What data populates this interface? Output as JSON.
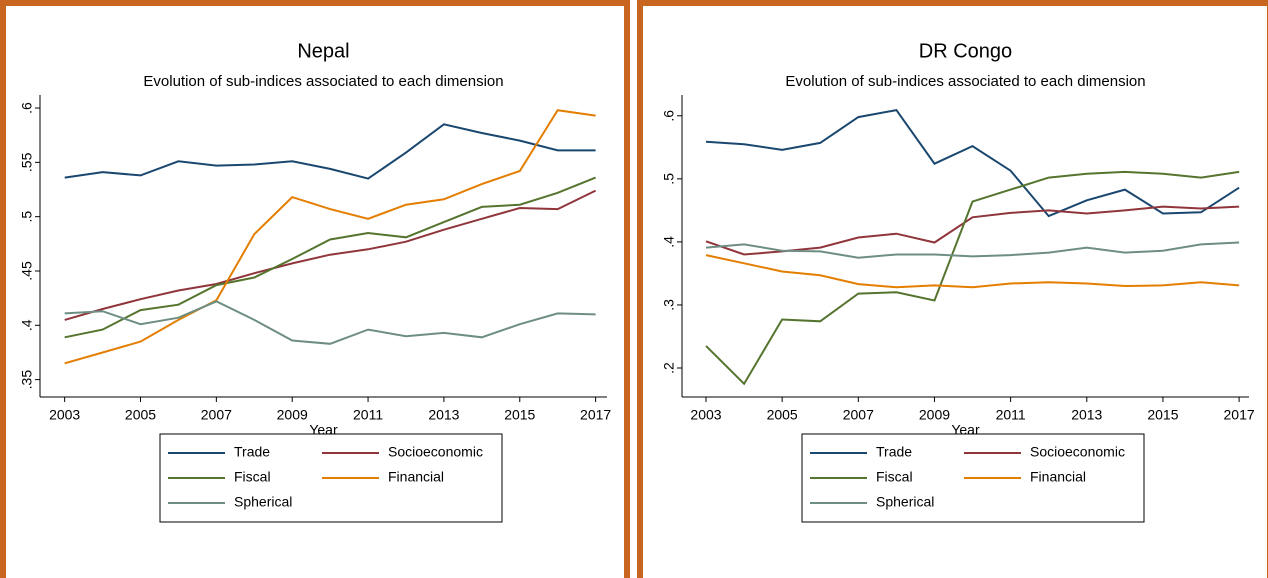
{
  "chart_data": [
    {
      "type": "line",
      "title": "Nepal",
      "subtitle": "Evolution of sub-indices associated to each dimension",
      "x_label": "Year",
      "x": [
        2003,
        2004,
        2005,
        2006,
        2007,
        2008,
        2009,
        2010,
        2011,
        2012,
        2013,
        2014,
        2015,
        2016,
        2017
      ],
      "xlim": [
        2002.35,
        2017.3
      ],
      "xticks": [
        2003,
        2005,
        2007,
        2009,
        2011,
        2013,
        2015,
        2017
      ],
      "ylim": [
        0.334,
        0.612
      ],
      "yticks": [
        {
          "value": 0.35,
          "label": ".35"
        },
        {
          "value": 0.4,
          "label": ".4"
        },
        {
          "value": 0.45,
          "label": ".45"
        },
        {
          "value": 0.5,
          "label": ".5"
        },
        {
          "value": 0.55,
          "label": ".55"
        },
        {
          "value": 0.6,
          "label": ".6"
        }
      ],
      "series": [
        {
          "name": "Trade",
          "color": "#1a476f",
          "values": [
            0.536,
            0.541,
            0.538,
            0.551,
            0.547,
            0.548,
            0.551,
            0.544,
            0.535,
            0.559,
            0.585,
            0.577,
            0.57,
            0.561,
            0.561
          ]
        },
        {
          "name": "Socioeconomic",
          "color": "#90353b",
          "values": [
            0.405,
            0.415,
            0.424,
            0.432,
            0.438,
            0.448,
            0.457,
            0.465,
            0.47,
            0.477,
            0.488,
            0.498,
            0.508,
            0.507,
            0.524
          ]
        },
        {
          "name": "Fiscal",
          "color": "#55752f",
          "values": [
            0.389,
            0.396,
            0.414,
            0.419,
            0.437,
            0.444,
            0.461,
            0.479,
            0.485,
            0.481,
            0.495,
            0.509,
            0.511,
            0.522,
            0.536
          ]
        },
        {
          "name": "Financial",
          "color": "#e37e00",
          "values": [
            0.365,
            0.375,
            0.385,
            0.405,
            0.423,
            0.484,
            0.518,
            0.507,
            0.498,
            0.511,
            0.516,
            0.53,
            0.542,
            0.598,
            0.593
          ]
        },
        {
          "name": "Spherical",
          "color": "#6e8e84",
          "values": [
            0.411,
            0.413,
            0.401,
            0.407,
            0.422,
            0.405,
            0.386,
            0.383,
            0.396,
            0.39,
            0.393,
            0.389,
            0.401,
            0.411,
            0.41
          ]
        }
      ]
    },
    {
      "type": "line",
      "title": "DR Congo",
      "subtitle": "Evolution of sub-indices associated to each dimension",
      "x_label": "Year",
      "x": [
        2003,
        2004,
        2005,
        2006,
        2007,
        2008,
        2009,
        2010,
        2011,
        2012,
        2013,
        2014,
        2015,
        2016,
        2017
      ],
      "xlim": [
        2002.37,
        2017.26
      ],
      "xticks": [
        2003,
        2005,
        2007,
        2009,
        2011,
        2013,
        2015,
        2017
      ],
      "ylim": [
        0.154,
        0.633
      ],
      "yticks": [
        {
          "value": 0.2,
          "label": ".2"
        },
        {
          "value": 0.3,
          "label": ".3"
        },
        {
          "value": 0.4,
          "label": ".4"
        },
        {
          "value": 0.5,
          "label": ".5"
        },
        {
          "value": 0.6,
          "label": ".6"
        }
      ],
      "series": [
        {
          "name": "Trade",
          "color": "#1a476f",
          "values": [
            0.559,
            0.555,
            0.546,
            0.557,
            0.598,
            0.609,
            0.524,
            0.552,
            0.513,
            0.441,
            0.466,
            0.483,
            0.445,
            0.447,
            0.486
          ]
        },
        {
          "name": "Socioeconomic",
          "color": "#90353b",
          "values": [
            0.401,
            0.38,
            0.385,
            0.391,
            0.407,
            0.413,
            0.399,
            0.439,
            0.446,
            0.45,
            0.445,
            0.45,
            0.456,
            0.453,
            0.456
          ]
        },
        {
          "name": "Fiscal",
          "color": "#55752f",
          "values": [
            0.235,
            0.175,
            0.277,
            0.274,
            0.318,
            0.32,
            0.307,
            0.464,
            0.483,
            0.502,
            0.508,
            0.511,
            0.508,
            0.502,
            0.511
          ]
        },
        {
          "name": "Financial",
          "color": "#e37e00",
          "values": [
            0.379,
            0.366,
            0.353,
            0.347,
            0.333,
            0.328,
            0.331,
            0.328,
            0.334,
            0.336,
            0.334,
            0.33,
            0.331,
            0.336,
            0.331
          ]
        },
        {
          "name": "Spherical",
          "color": "#6e8e84",
          "values": [
            0.391,
            0.396,
            0.386,
            0.385,
            0.375,
            0.38,
            0.38,
            0.377,
            0.379,
            0.383,
            0.391,
            0.383,
            0.386,
            0.396,
            0.399
          ]
        }
      ]
    }
  ]
}
